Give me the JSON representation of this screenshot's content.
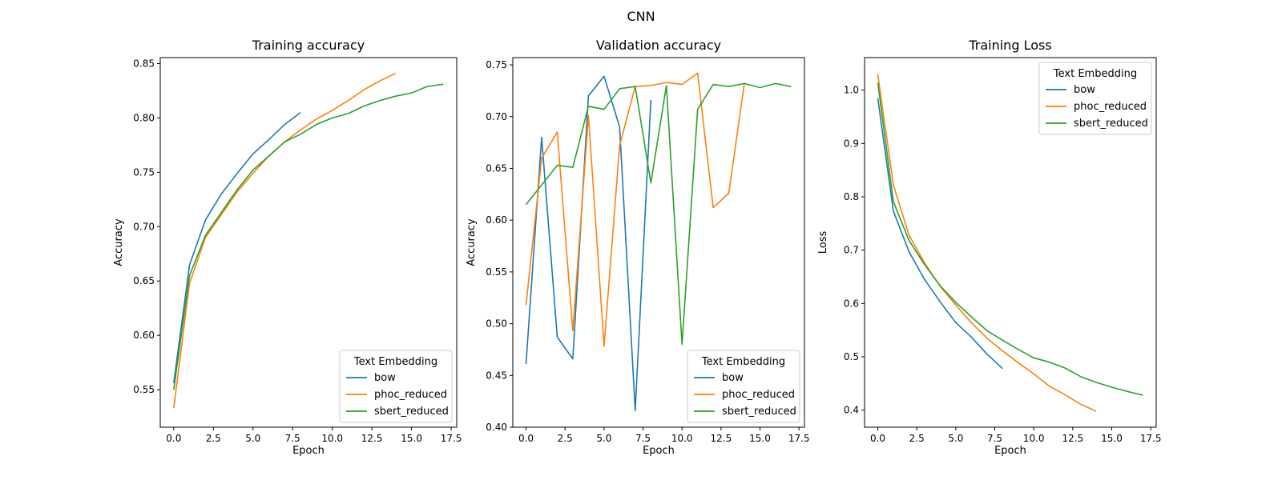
{
  "figure_title": "CNN",
  "chart_data": [
    {
      "type": "line",
      "title": "Training accuracy",
      "xlabel": "Epoch",
      "ylabel": "Accuracy",
      "xlim": [
        -0.85,
        17.85
      ],
      "ylim": [
        0.5155,
        0.8555
      ],
      "xticks": [
        0,
        2.5,
        5,
        7.5,
        10,
        12.5,
        15,
        17.5
      ],
      "xtick_labels": [
        "0.0",
        "2.5",
        "5.0",
        "7.5",
        "10.0",
        "12.5",
        "15.0",
        "17.5"
      ],
      "yticks": [
        0.55,
        0.6,
        0.65,
        0.7,
        0.75,
        0.8,
        0.85
      ],
      "ytick_labels": [
        "0.55",
        "0.60",
        "0.65",
        "0.70",
        "0.75",
        "0.80",
        "0.85"
      ],
      "legend_title": "Text Embedding",
      "legend_loc": "lower-right",
      "series": [
        {
          "name": "bow",
          "color": "#1f77b4",
          "x": [
            0,
            1,
            2,
            3,
            4,
            5,
            6,
            7,
            8
          ],
          "y": [
            0.556,
            0.665,
            0.706,
            0.73,
            0.749,
            0.767,
            0.78,
            0.794,
            0.805
          ]
        },
        {
          "name": "phoc_reduced",
          "color": "#ff7f0e",
          "x": [
            0,
            1,
            2,
            3,
            4,
            5,
            6,
            7,
            8,
            9,
            10,
            11,
            12,
            13,
            14
          ],
          "y": [
            0.533,
            0.648,
            0.69,
            0.711,
            0.732,
            0.749,
            0.765,
            0.778,
            0.789,
            0.799,
            0.807,
            0.816,
            0.826,
            0.834,
            0.841
          ]
        },
        {
          "name": "sbert_reduced",
          "color": "#2ca02c",
          "x": [
            0,
            1,
            2,
            3,
            4,
            5,
            6,
            7,
            8,
            9,
            10,
            11,
            12,
            13,
            14,
            15,
            16,
            17
          ],
          "y": [
            0.55,
            0.655,
            0.692,
            0.713,
            0.734,
            0.752,
            0.765,
            0.778,
            0.785,
            0.794,
            0.8,
            0.804,
            0.811,
            0.816,
            0.82,
            0.823,
            0.829,
            0.831
          ]
        }
      ]
    },
    {
      "type": "line",
      "title": "Validation accuracy",
      "xlabel": "Epoch",
      "ylabel": "Accuracy",
      "xlim": [
        -0.85,
        17.85
      ],
      "ylim": [
        0.4,
        0.757
      ],
      "xticks": [
        0,
        2.5,
        5,
        7.5,
        10,
        12.5,
        15,
        17.5
      ],
      "xtick_labels": [
        "0.0",
        "2.5",
        "5.0",
        "7.5",
        "10.0",
        "12.5",
        "15.0",
        "17.5"
      ],
      "yticks": [
        0.4,
        0.45,
        0.5,
        0.55,
        0.6,
        0.65,
        0.7,
        0.75
      ],
      "ytick_labels": [
        "0.40",
        "0.45",
        "0.50",
        "0.55",
        "0.60",
        "0.65",
        "0.70",
        "0.75"
      ],
      "legend_title": "Text Embedding",
      "legend_loc": "lower-right",
      "series": [
        {
          "name": "bow",
          "color": "#1f77b4",
          "x": [
            0,
            1,
            2,
            3,
            4,
            5,
            6,
            7,
            8
          ],
          "y": [
            0.461,
            0.68,
            0.487,
            0.466,
            0.72,
            0.739,
            0.69,
            0.416,
            0.716
          ]
        },
        {
          "name": "phoc_reduced",
          "color": "#ff7f0e",
          "x": [
            0,
            1,
            2,
            3,
            4,
            5,
            6,
            7,
            8,
            9,
            10,
            11,
            12,
            13,
            14
          ],
          "y": [
            0.518,
            0.66,
            0.685,
            0.493,
            0.701,
            0.478,
            0.672,
            0.729,
            0.73,
            0.733,
            0.731,
            0.742,
            0.612,
            0.626,
            0.733
          ]
        },
        {
          "name": "sbert_reduced",
          "color": "#2ca02c",
          "x": [
            0,
            1,
            2,
            3,
            4,
            5,
            6,
            7,
            8,
            9,
            10,
            11,
            12,
            13,
            14,
            15,
            16,
            17
          ],
          "y": [
            0.615,
            0.634,
            0.653,
            0.651,
            0.71,
            0.707,
            0.727,
            0.729,
            0.636,
            0.73,
            0.48,
            0.707,
            0.731,
            0.729,
            0.732,
            0.728,
            0.732,
            0.729
          ]
        }
      ]
    },
    {
      "type": "line",
      "title": "Training Loss",
      "xlabel": "Epoch",
      "ylabel": "Loss",
      "xlim": [
        -0.85,
        17.85
      ],
      "ylim": [
        0.368,
        1.061
      ],
      "xticks": [
        0,
        2.5,
        5,
        7.5,
        10,
        12.5,
        15,
        17.5
      ],
      "xtick_labels": [
        "0.0",
        "2.5",
        "5.0",
        "7.5",
        "10.0",
        "12.5",
        "15.0",
        "17.5"
      ],
      "yticks": [
        0.4,
        0.5,
        0.6,
        0.7,
        0.8,
        0.9,
        1.0
      ],
      "ytick_labels": [
        "0.4",
        "0.5",
        "0.6",
        "0.7",
        "0.8",
        "0.9",
        "1.0"
      ],
      "legend_title": "Text Embedding",
      "legend_loc": "upper-right",
      "series": [
        {
          "name": "bow",
          "color": "#1f77b4",
          "x": [
            0,
            1,
            2,
            3,
            4,
            5,
            6,
            7,
            8
          ],
          "y": [
            0.985,
            0.773,
            0.697,
            0.645,
            0.603,
            0.564,
            0.537,
            0.505,
            0.478
          ]
        },
        {
          "name": "phoc_reduced",
          "color": "#ff7f0e",
          "x": [
            0,
            1,
            2,
            3,
            4,
            5,
            6,
            7,
            8,
            9,
            10,
            11,
            12,
            13,
            14
          ],
          "y": [
            1.03,
            0.822,
            0.728,
            0.676,
            0.632,
            0.597,
            0.564,
            0.535,
            0.511,
            0.489,
            0.468,
            0.445,
            0.429,
            0.411,
            0.398
          ]
        },
        {
          "name": "sbert_reduced",
          "color": "#2ca02c",
          "x": [
            0,
            1,
            2,
            3,
            4,
            5,
            6,
            7,
            8,
            9,
            10,
            11,
            12,
            13,
            14,
            15,
            16,
            17
          ],
          "y": [
            1.014,
            0.791,
            0.718,
            0.673,
            0.633,
            0.602,
            0.575,
            0.549,
            0.531,
            0.514,
            0.498,
            0.49,
            0.479,
            0.463,
            0.452,
            0.443,
            0.435,
            0.428
          ]
        }
      ]
    }
  ]
}
